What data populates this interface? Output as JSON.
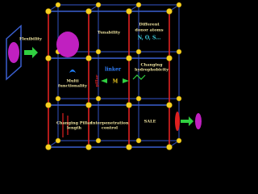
{
  "labels": {
    "flexibility": "Flexibility",
    "tunability": "Tunability",
    "donor": [
      "Different",
      "donor atoms"
    ],
    "atoms": "N, O, S...",
    "linker": "linker",
    "metal": "M",
    "pillar": "pillar",
    "multi": [
      "Multi",
      "functionality"
    ],
    "hydrophobicity": [
      "Changing",
      "hydrophobicity"
    ],
    "pillar_length": [
      "Changing Pillar",
      "length"
    ],
    "interpenetration": [
      "Interpenetration",
      "control"
    ],
    "sale": "SALE"
  }
}
